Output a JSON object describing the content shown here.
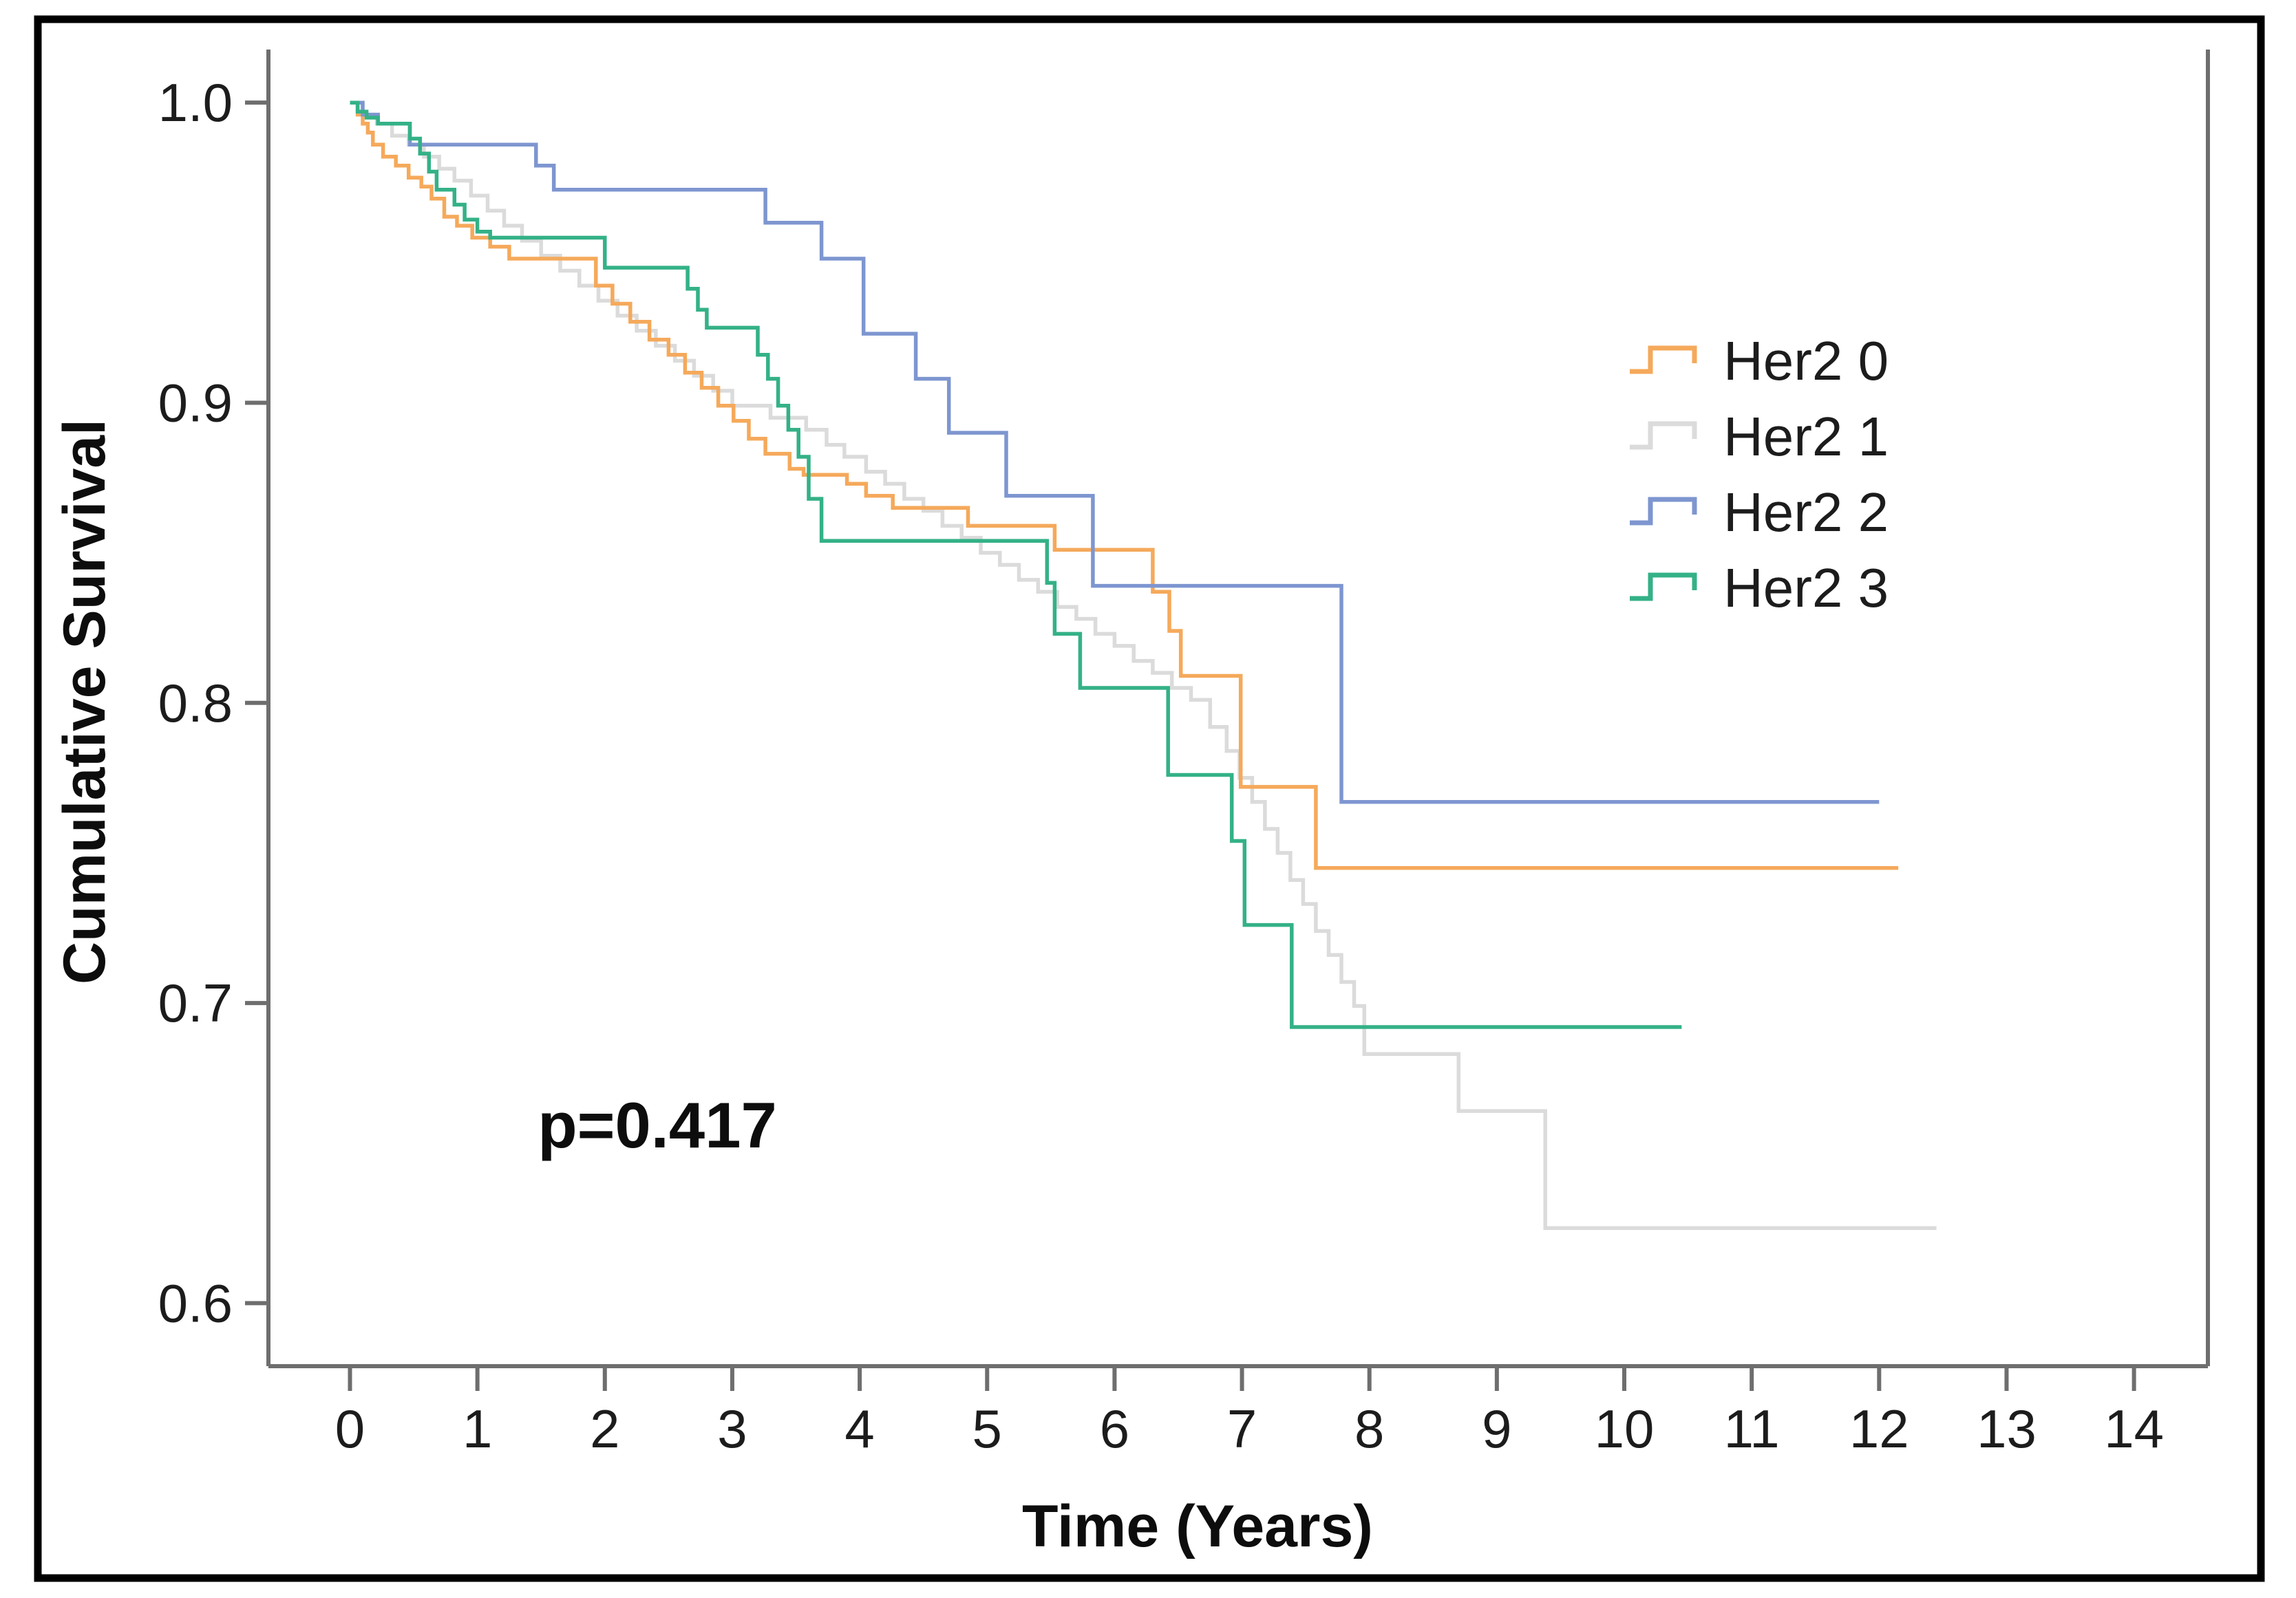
{
  "figure": {
    "background_color": "#ffffff",
    "border_color": "#000000",
    "axis_color": "#6e6e6e",
    "text_color": "#1c1c1c"
  },
  "chart_data": {
    "type": "line",
    "subtype": "kaplan-meier-step-survival",
    "title": "",
    "xlabel": "Time (Years)",
    "ylabel": "Cumulative Survival",
    "annotation": {
      "text": "p=0.417"
    },
    "grid": false,
    "legend_position": "upper-right-inside",
    "xlim": [
      -0.64,
      14.58
    ],
    "ylim": [
      0.579,
      1.017
    ],
    "x_ticks": [
      {
        "label": "0",
        "value": 0
      },
      {
        "label": "1",
        "value": 1
      },
      {
        "label": "2",
        "value": 2
      },
      {
        "label": "3",
        "value": 3
      },
      {
        "label": "4",
        "value": 4
      },
      {
        "label": "5",
        "value": 5
      },
      {
        "label": "6",
        "value": 6
      },
      {
        "label": "7",
        "value": 7
      },
      {
        "label": "8",
        "value": 8
      },
      {
        "label": "9",
        "value": 9
      },
      {
        "label": "10",
        "value": 10
      },
      {
        "label": "11",
        "value": 11
      },
      {
        "label": "12",
        "value": 12
      },
      {
        "label": "13",
        "value": 13
      },
      {
        "label": "14",
        "value": 14
      }
    ],
    "y_ticks": [
      {
        "label": "1.0",
        "value": 1.0
      },
      {
        "label": "0.9",
        "value": 0.9
      },
      {
        "label": "0.8",
        "value": 0.8
      },
      {
        "label": "0.7",
        "value": 0.7
      },
      {
        "label": "0.6",
        "value": 0.6
      }
    ],
    "series": [
      {
        "name": "Her2 0",
        "color": "#F5A95B",
        "end_t": 12.15,
        "points": [
          [
            0,
            1
          ],
          [
            0.06,
            0.996
          ],
          [
            0.1,
            0.993
          ],
          [
            0.14,
            0.99
          ],
          [
            0.18,
            0.986
          ],
          [
            0.26,
            0.982
          ],
          [
            0.36,
            0.979
          ],
          [
            0.46,
            0.975
          ],
          [
            0.56,
            0.972
          ],
          [
            0.64,
            0.968
          ],
          [
            0.74,
            0.962
          ],
          [
            0.84,
            0.959
          ],
          [
            0.96,
            0.955
          ],
          [
            1.1,
            0.952
          ],
          [
            1.25,
            0.948
          ],
          [
            1.93,
            0.939
          ],
          [
            2.06,
            0.933
          ],
          [
            2.2,
            0.927
          ],
          [
            2.35,
            0.921
          ],
          [
            2.5,
            0.916
          ],
          [
            2.63,
            0.91
          ],
          [
            2.76,
            0.905
          ],
          [
            2.89,
            0.899
          ],
          [
            3.01,
            0.894
          ],
          [
            3.13,
            0.888
          ],
          [
            3.26,
            0.883
          ],
          [
            3.45,
            0.878
          ],
          [
            3.56,
            0.876
          ],
          [
            3.9,
            0.873
          ],
          [
            4.05,
            0.869
          ],
          [
            4.26,
            0.865
          ],
          [
            4.85,
            0.859
          ],
          [
            5.53,
            0.851
          ],
          [
            6.3,
            0.837
          ],
          [
            6.43,
            0.824
          ],
          [
            6.52,
            0.809
          ],
          [
            6.99,
            0.772
          ],
          [
            7.58,
            0.745
          ]
        ]
      },
      {
        "name": "Her2 1",
        "color": "#DBDBDB",
        "end_t": 12.45,
        "points": [
          [
            0,
            1
          ],
          [
            0.1,
            0.996
          ],
          [
            0.21,
            0.993
          ],
          [
            0.33,
            0.989
          ],
          [
            0.46,
            0.986
          ],
          [
            0.58,
            0.982
          ],
          [
            0.7,
            0.978
          ],
          [
            0.82,
            0.974
          ],
          [
            0.95,
            0.969
          ],
          [
            1.08,
            0.964
          ],
          [
            1.21,
            0.959
          ],
          [
            1.35,
            0.954
          ],
          [
            1.5,
            0.949
          ],
          [
            1.65,
            0.944
          ],
          [
            1.8,
            0.939
          ],
          [
            1.95,
            0.934
          ],
          [
            2.1,
            0.929
          ],
          [
            2.25,
            0.924
          ],
          [
            2.4,
            0.919
          ],
          [
            2.55,
            0.914
          ],
          [
            2.7,
            0.909
          ],
          [
            2.85,
            0.904
          ],
          [
            3,
            0.899
          ],
          [
            3.3,
            0.895
          ],
          [
            3.58,
            0.891
          ],
          [
            3.74,
            0.886
          ],
          [
            3.88,
            0.882
          ],
          [
            4.05,
            0.877
          ],
          [
            4.2,
            0.873
          ],
          [
            4.35,
            0.868
          ],
          [
            4.5,
            0.864
          ],
          [
            4.65,
            0.859
          ],
          [
            4.8,
            0.855
          ],
          [
            4.95,
            0.85
          ],
          [
            5.1,
            0.846
          ],
          [
            5.25,
            0.841
          ],
          [
            5.4,
            0.837
          ],
          [
            5.55,
            0.832
          ],
          [
            5.7,
            0.828
          ],
          [
            5.85,
            0.823
          ],
          [
            6,
            0.819
          ],
          [
            6.15,
            0.814
          ],
          [
            6.3,
            0.81
          ],
          [
            6.45,
            0.805
          ],
          [
            6.6,
            0.801
          ],
          [
            6.75,
            0.792
          ],
          [
            6.88,
            0.784
          ],
          [
            6.98,
            0.775
          ],
          [
            7.08,
            0.767
          ],
          [
            7.18,
            0.758
          ],
          [
            7.28,
            0.75
          ],
          [
            7.38,
            0.741
          ],
          [
            7.48,
            0.733
          ],
          [
            7.58,
            0.724
          ],
          [
            7.68,
            0.716
          ],
          [
            7.78,
            0.707
          ],
          [
            7.88,
            0.699
          ],
          [
            7.96,
            0.683
          ],
          [
            8.7,
            0.664
          ],
          [
            9.38,
            0.625
          ]
        ]
      },
      {
        "name": "Her2 2",
        "color": "#7E96D0",
        "end_t": 12.0,
        "points": [
          [
            0,
            1
          ],
          [
            0.1,
            0.996
          ],
          [
            0.22,
            0.993
          ],
          [
            0.47,
            0.986
          ],
          [
            1.46,
            0.979
          ],
          [
            1.6,
            0.971
          ],
          [
            3.26,
            0.96
          ],
          [
            3.7,
            0.948
          ],
          [
            4.03,
            0.923
          ],
          [
            4.44,
            0.908
          ],
          [
            4.7,
            0.89
          ],
          [
            5.15,
            0.869
          ],
          [
            5.83,
            0.839
          ],
          [
            7.78,
            0.767
          ]
        ]
      },
      {
        "name": "Her2 3",
        "color": "#34B187",
        "end_t": 10.45,
        "points": [
          [
            0,
            1
          ],
          [
            0.06,
            0.997
          ],
          [
            0.13,
            0.995
          ],
          [
            0.22,
            0.993
          ],
          [
            0.47,
            0.988
          ],
          [
            0.55,
            0.983
          ],
          [
            0.62,
            0.977
          ],
          [
            0.68,
            0.971
          ],
          [
            0.82,
            0.966
          ],
          [
            0.9,
            0.961
          ],
          [
            1,
            0.957
          ],
          [
            1.1,
            0.955
          ],
          [
            2,
            0.945
          ],
          [
            2.65,
            0.938
          ],
          [
            2.73,
            0.931
          ],
          [
            2.8,
            0.925
          ],
          [
            3.2,
            0.916
          ],
          [
            3.28,
            0.908
          ],
          [
            3.36,
            0.899
          ],
          [
            3.44,
            0.891
          ],
          [
            3.52,
            0.882
          ],
          [
            3.6,
            0.868
          ],
          [
            3.7,
            0.854
          ],
          [
            5.47,
            0.84
          ],
          [
            5.53,
            0.823
          ],
          [
            5.73,
            0.805
          ],
          [
            6.42,
            0.776
          ],
          [
            6.92,
            0.754
          ],
          [
            7.02,
            0.726
          ],
          [
            7.39,
            0.692
          ]
        ]
      }
    ]
  }
}
